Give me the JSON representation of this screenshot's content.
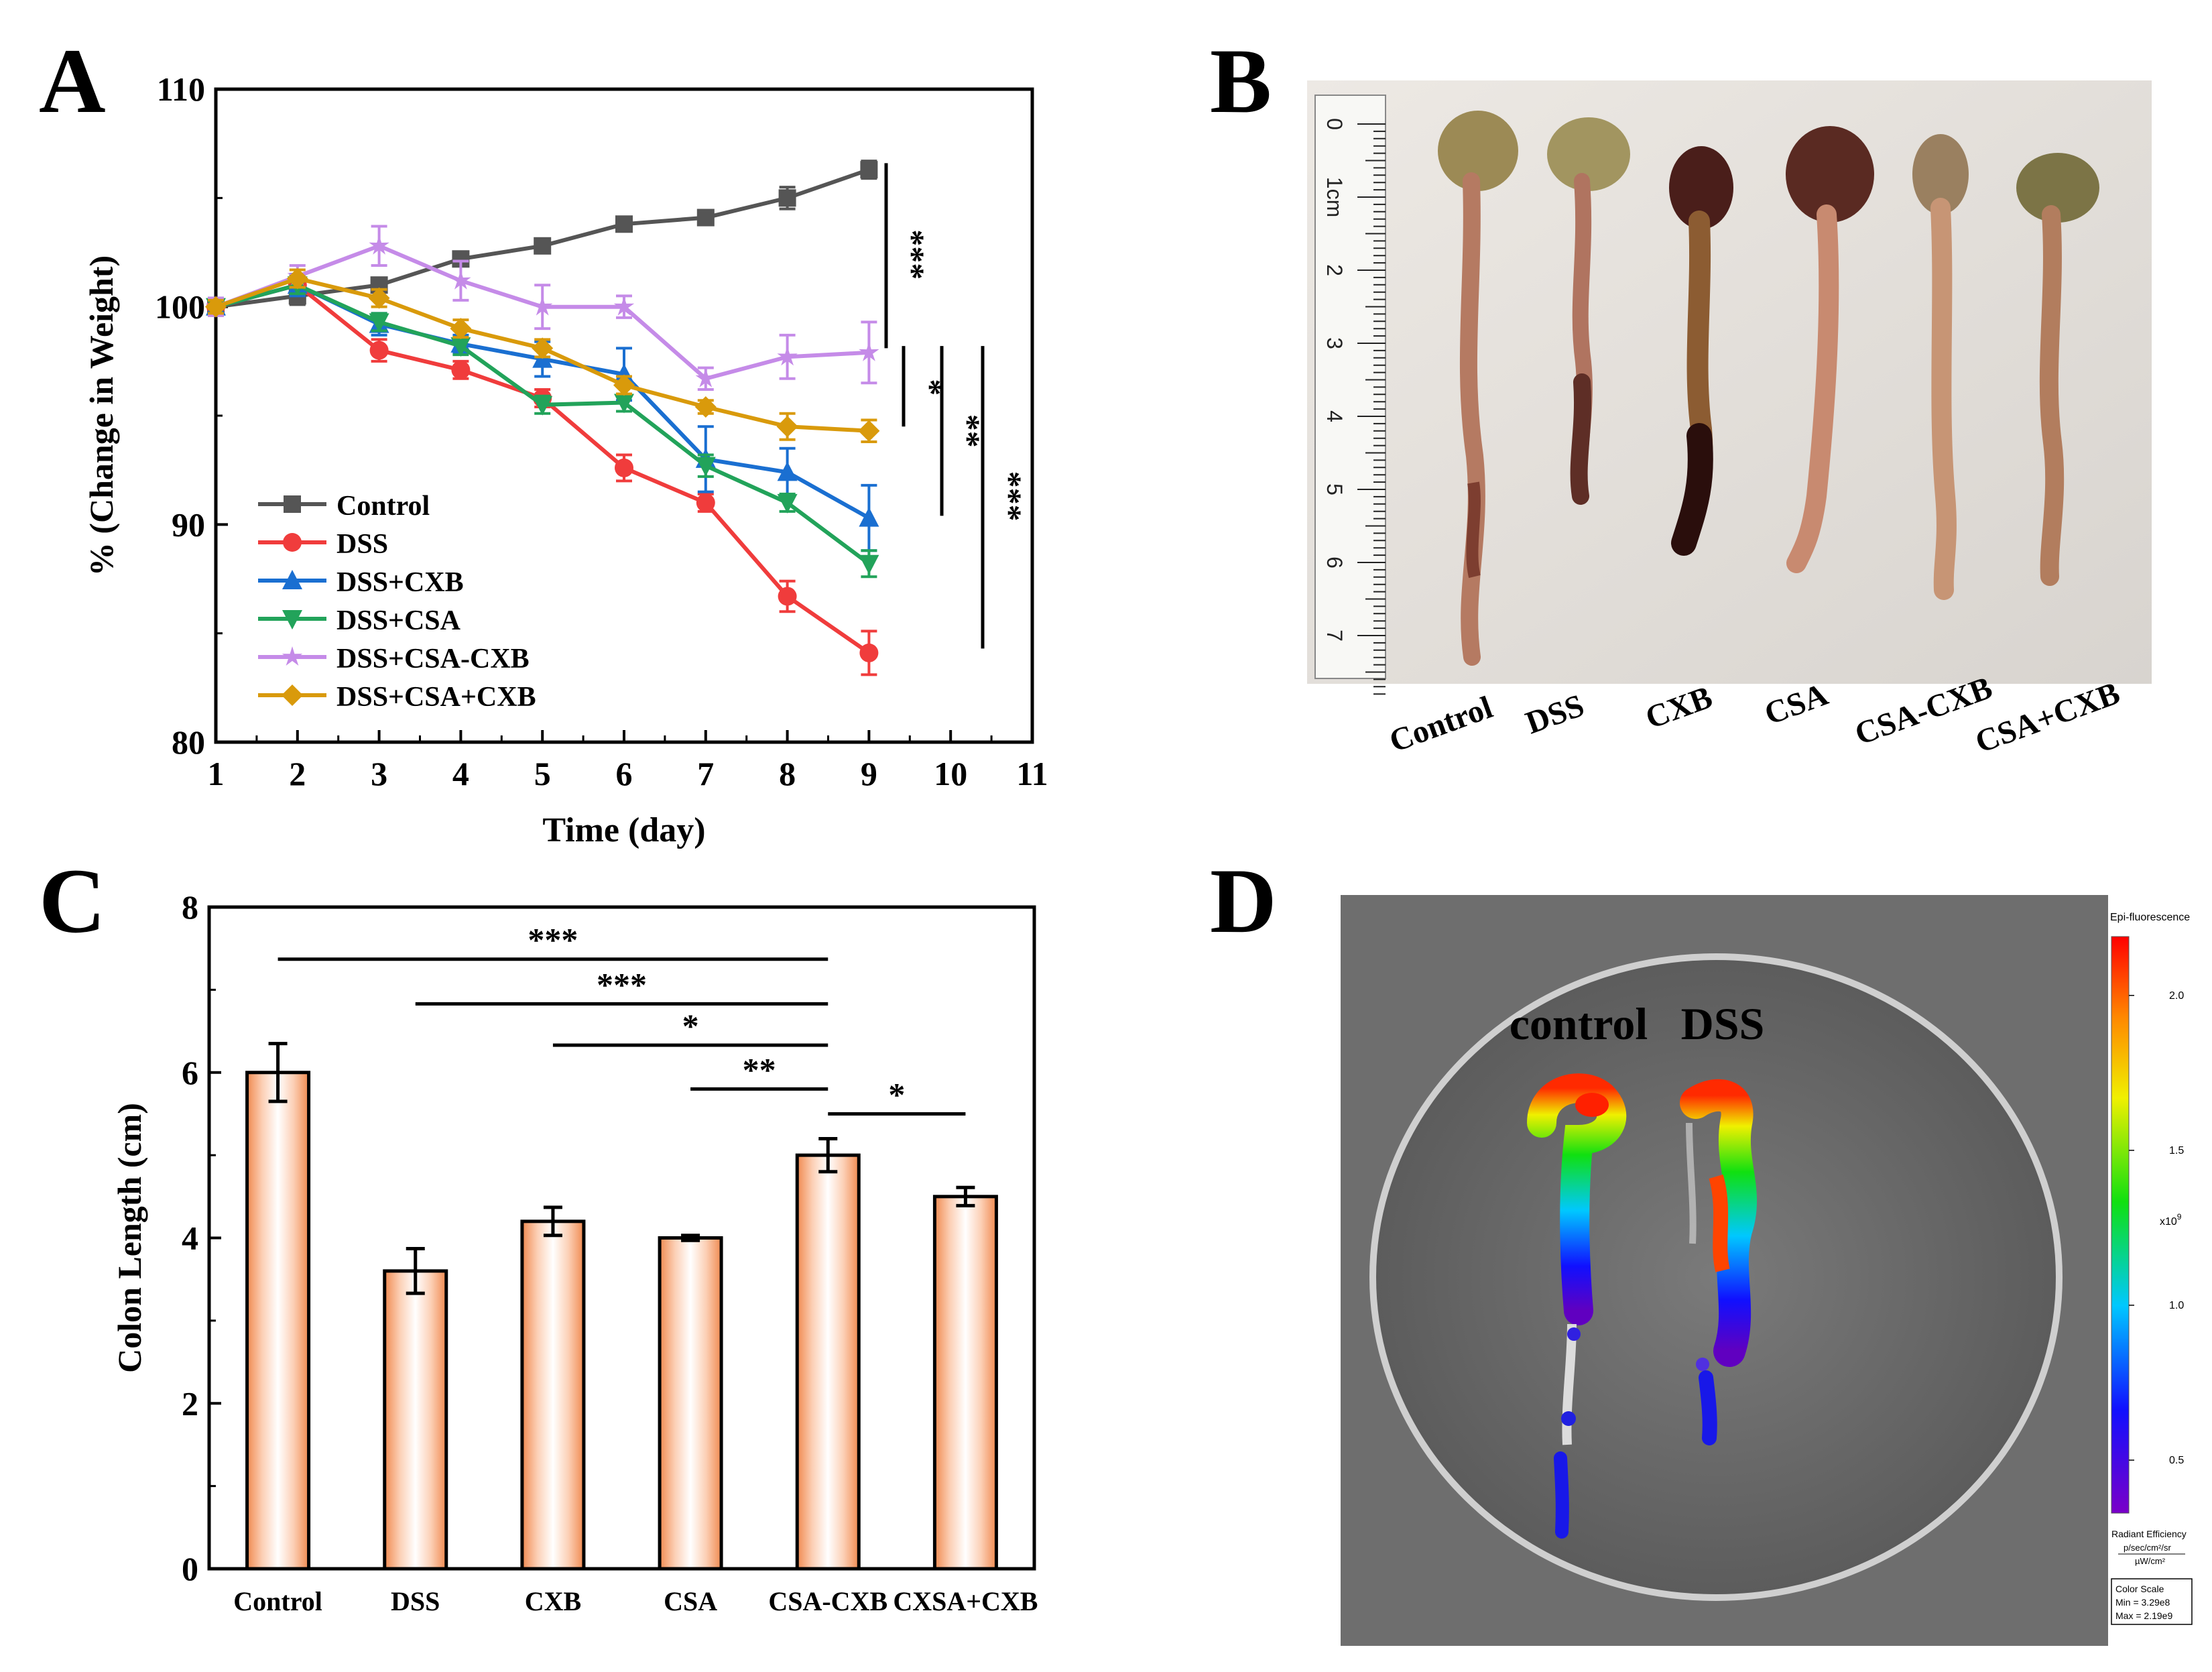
{
  "panels": {
    "A": "A",
    "B": "B",
    "C": "C",
    "D": "D"
  },
  "chart_data": [
    {
      "type": "line",
      "panel": "A",
      "xlabel": "Time (day)",
      "ylabel": "% (Change in Weight)",
      "xlim": [
        1,
        11
      ],
      "ylim": [
        80,
        110
      ],
      "xticks": [
        "1",
        "2",
        "3",
        "4",
        "5",
        "6",
        "7",
        "8",
        "9",
        "10",
        "11"
      ],
      "yticks": [
        "80",
        "90",
        "100",
        "110"
      ],
      "x": [
        1,
        2,
        3,
        4,
        5,
        6,
        7,
        8,
        9
      ],
      "legend_position": "bottom-left",
      "series": [
        {
          "name": "Control",
          "color": "#555555",
          "marker": "square",
          "values": [
            100,
            100.5,
            101,
            102.2,
            102.8,
            103.8,
            104.1,
            105,
            106.3
          ],
          "errors": [
            0.3,
            0.4,
            0.3,
            0.3,
            0.3,
            0.3,
            0.3,
            0.5,
            0.4
          ]
        },
        {
          "name": "DSS",
          "color": "#f03c3c",
          "marker": "circle",
          "values": [
            100,
            101,
            98,
            97.1,
            95.8,
            92.6,
            91,
            86.7,
            84.1
          ],
          "errors": [
            0.4,
            0.4,
            0.5,
            0.4,
            0.4,
            0.6,
            0.4,
            0.7,
            1.0
          ]
        },
        {
          "name": "DSS+CXB",
          "color": "#1a6fd1",
          "marker": "triangle-up",
          "values": [
            100,
            101,
            99.2,
            98.3,
            97.6,
            96.9,
            93,
            92.4,
            90.3
          ],
          "errors": [
            0.4,
            0.5,
            0.5,
            0.4,
            0.8,
            1.2,
            1.5,
            1.1,
            1.5
          ]
        },
        {
          "name": "DSS+CSA",
          "color": "#22a35a",
          "marker": "triangle-down",
          "values": [
            100,
            101,
            99.3,
            98.2,
            95.5,
            95.6,
            92.7,
            91,
            88.2
          ],
          "errors": [
            0.3,
            0.4,
            0.4,
            0.4,
            0.4,
            0.4,
            0.5,
            0.4,
            0.6
          ]
        },
        {
          "name": "DSS+CSA-CXB",
          "color": "#c58be8",
          "marker": "star",
          "values": [
            100,
            101.4,
            102.8,
            101.2,
            100,
            100,
            96.7,
            97.7,
            97.9
          ],
          "errors": [
            0.4,
            0.5,
            0.9,
            0.9,
            1.0,
            0.5,
            0.5,
            1.0,
            1.4
          ]
        },
        {
          "name": "DSS+CSA+CXB",
          "color": "#d99a0b",
          "marker": "diamond",
          "values": [
            100,
            101.3,
            100.4,
            99,
            98.1,
            96.4,
            95.4,
            94.5,
            94.3
          ],
          "errors": [
            0.3,
            0.4,
            0.4,
            0.4,
            0.4,
            0.4,
            0.3,
            0.6,
            0.5
          ]
        }
      ],
      "significance": [
        "***",
        "*",
        "**",
        "***"
      ]
    },
    {
      "type": "bar",
      "panel": "C",
      "ylabel": "Colon Length (cm)",
      "ylim": [
        0,
        8
      ],
      "yticks": [
        "0",
        "2",
        "4",
        "6",
        "8"
      ],
      "categories": [
        "Control",
        "DSS",
        "CXB",
        "CSA",
        "CSA-CXB",
        "CXSA+CXB"
      ],
      "values": [
        6.0,
        3.6,
        4.2,
        4.0,
        5.0,
        4.5
      ],
      "errors": [
        0.35,
        0.27,
        0.17,
        0.03,
        0.2,
        0.11
      ],
      "significance": [
        {
          "label": "***",
          "from": 0,
          "to": 4
        },
        {
          "label": "***",
          "from": 1,
          "to": 4
        },
        {
          "label": "*",
          "from": 2,
          "to": 4
        },
        {
          "label": "**",
          "from": 3,
          "to": 4
        },
        {
          "label": "*",
          "from": 4,
          "to": 5
        }
      ]
    }
  ],
  "photo_B": {
    "labels": [
      "Control",
      "DSS",
      "CXB",
      "CSA",
      "CSA-CXB",
      "CSA+CXB"
    ],
    "ruler_numbers": [
      "0",
      "1cm",
      "2",
      "3",
      "4",
      "5",
      "6",
      "7"
    ]
  },
  "fluorescence_D": {
    "labels": [
      "control",
      "DSS"
    ],
    "scale_title": "Epi-fluorescence",
    "scale_ticks": [
      "2.0",
      "1.5",
      "1.0",
      "0.5"
    ],
    "multiplier": "x10",
    "multiplier_exp": "9",
    "units_title": "Radiant Efficiency",
    "units_num": "p/sec/cm²/sr",
    "units_den": "µW/cm²",
    "color_scale": [
      "Color Scale",
      "Min = 3.29e8",
      "Max = 2.19e9"
    ]
  }
}
